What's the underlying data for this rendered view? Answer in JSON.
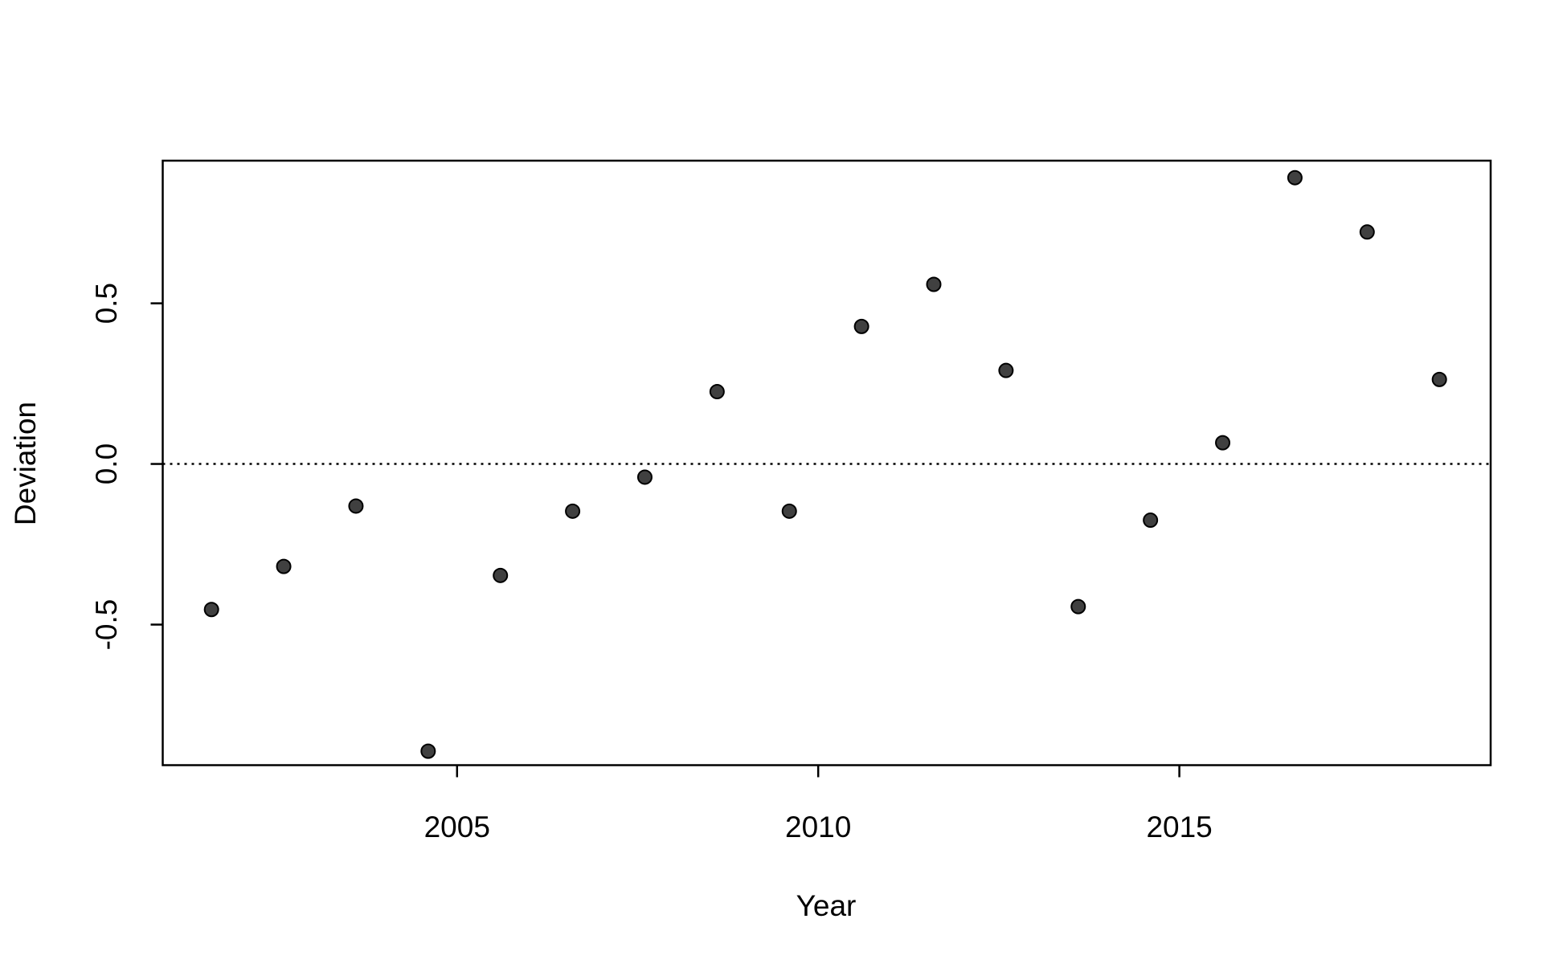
{
  "chart_data": {
    "type": "scatter",
    "x_label": "Year",
    "y_label": "Deviation",
    "x": [
      2001.6,
      2002.6,
      2003.6,
      2004.6,
      2005.6,
      2006.6,
      2007.6,
      2008.6,
      2009.6,
      2010.6,
      2011.6,
      2012.6,
      2013.6,
      2014.6,
      2015.6,
      2016.6,
      2017.6,
      2018.6
    ],
    "values": [
      -0.453,
      -0.319,
      -0.131,
      -0.894,
      -0.347,
      -0.147,
      -0.041,
      0.225,
      -0.147,
      0.428,
      0.559,
      0.291,
      -0.444,
      -0.175,
      0.066,
      0.891,
      0.722,
      0.263
    ],
    "color": "#404040",
    "xlim": [
      2000.925,
      2019.31
    ],
    "xticks": [
      2005,
      2010,
      2015
    ],
    "ylim": [
      -0.9375,
      0.944
    ],
    "yticks": [
      -0.5,
      {
        "value": 0,
        "label": "0.0"
      },
      0.5
    ],
    "reference_line": 0,
    "grid": false
  }
}
